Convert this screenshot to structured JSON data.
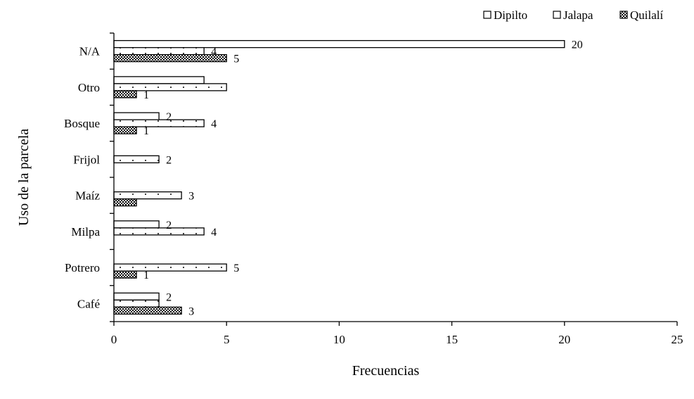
{
  "chart_data": {
    "type": "bar",
    "orientation": "horizontal",
    "title": "",
    "xlabel": "Frecuencias",
    "ylabel": "Uso de la parcela",
    "xlim": [
      0,
      25
    ],
    "xticks": [
      0,
      5,
      10,
      15,
      20,
      25
    ],
    "grid": false,
    "legend_position": "top-right",
    "categories": [
      "N/A",
      "Otro",
      "Bosque",
      "Frijol",
      "Maíz",
      "Milpa",
      "Potrero",
      "Café"
    ],
    "series": [
      {
        "name": "Dipilto",
        "pattern": "plain",
        "values": [
          20,
          4,
          2,
          null,
          null,
          2,
          null,
          2
        ]
      },
      {
        "name": "Jalapa",
        "pattern": "dotted",
        "values": [
          4,
          5,
          4,
          2,
          3,
          4,
          5,
          2
        ]
      },
      {
        "name": "Quilalí",
        "pattern": "crosshatch",
        "values": [
          5,
          1,
          1,
          null,
          1,
          null,
          1,
          3
        ]
      }
    ],
    "data_labels": [
      {
        "category": "N/A",
        "series": "Dipilto",
        "text": "20"
      },
      {
        "category": "N/A",
        "series": "Jalapa",
        "text": "4"
      },
      {
        "category": "N/A",
        "series": "Quilalí",
        "text": "5"
      },
      {
        "category": "Otro",
        "series": "Quilalí",
        "text": "1"
      },
      {
        "category": "Bosque",
        "series": "Dipilto",
        "text": "2"
      },
      {
        "category": "Bosque",
        "series": "Jalapa",
        "text": "4"
      },
      {
        "category": "Bosque",
        "series": "Quilalí",
        "text": "1"
      },
      {
        "category": "Frijol",
        "series": "Jalapa",
        "text": "2"
      },
      {
        "category": "Maíz",
        "series": "Jalapa",
        "text": "3"
      },
      {
        "category": "Milpa",
        "series": "Dipilto",
        "text": "2"
      },
      {
        "category": "Milpa",
        "series": "Jalapa",
        "text": "4"
      },
      {
        "category": "Potrero",
        "series": "Jalapa",
        "text": "5"
      },
      {
        "category": "Potrero",
        "series": "Quilalí",
        "text": "1"
      },
      {
        "category": "Café",
        "series": "Dipilto",
        "text": "2"
      },
      {
        "category": "Café",
        "series": "Quilalí",
        "text": "3"
      }
    ]
  }
}
